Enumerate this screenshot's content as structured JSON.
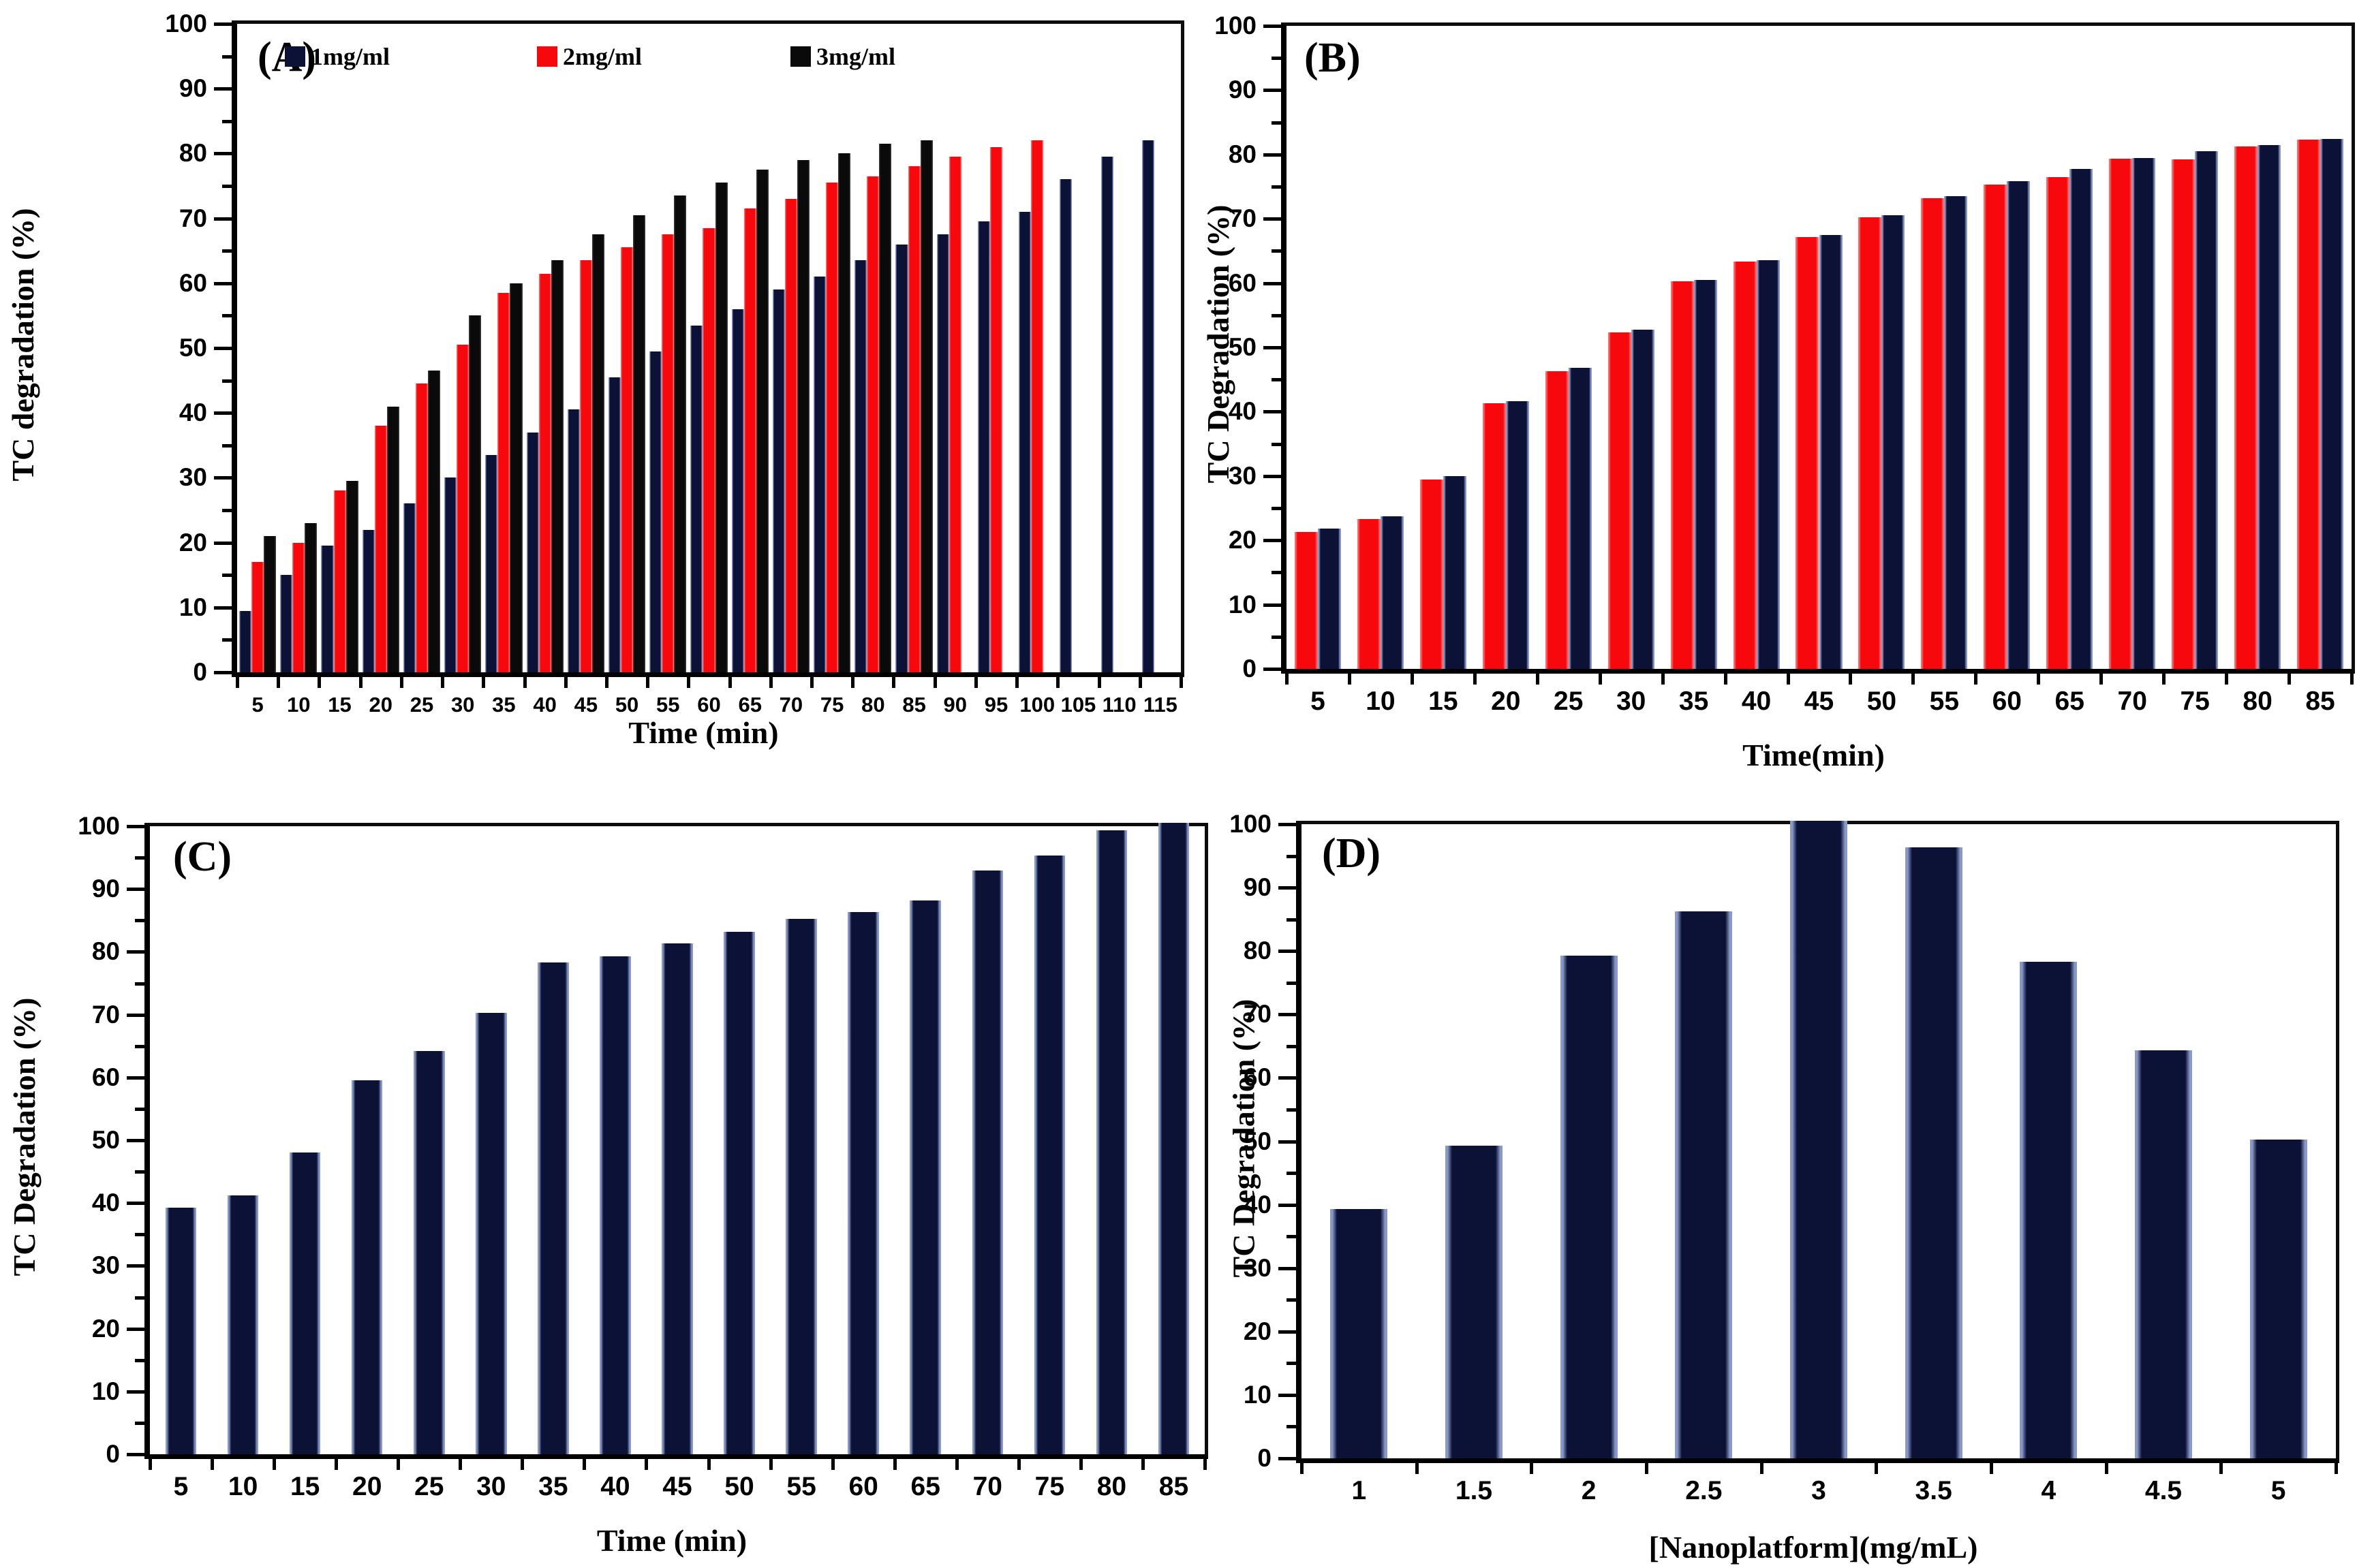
{
  "figure": {
    "background": "#ffffff",
    "text_color": "#000000"
  },
  "colors": {
    "navy": "#0b1236",
    "navy_edge": "#8a9ac8",
    "red": "#f6080c",
    "black": "#0a0a0a"
  },
  "chart_data": [
    {
      "panel_label": "(A)",
      "type": "bar",
      "title": "",
      "xlabel": "Time (min)",
      "ylabel": "TC degradation  (%)",
      "ylim": [
        0,
        100
      ],
      "ytick_step": 10,
      "ytick_minor_step": 5,
      "grid": false,
      "legend_position": "top-inside",
      "categories": [
        5,
        10,
        15,
        20,
        25,
        30,
        35,
        40,
        45,
        50,
        55,
        60,
        65,
        70,
        75,
        80,
        85,
        90,
        95,
        100,
        105,
        110,
        115
      ],
      "series": [
        {
          "name": "1mg/ml",
          "color": "#0b1236",
          "edge": "#8a9ac8",
          "values": [
            9.5,
            15,
            19.5,
            22,
            26,
            30,
            33.5,
            37,
            40.5,
            45.5,
            49.5,
            53.5,
            56,
            59,
            61,
            63.5,
            66,
            67.5,
            69.5,
            71,
            76,
            79.5,
            82
          ]
        },
        {
          "name": "2mg/ml",
          "color": "#f6080c",
          "edge": "#ff6a6a",
          "values": [
            17,
            20,
            28,
            38,
            44.5,
            50.5,
            58.5,
            61.5,
            63.5,
            65.5,
            67.5,
            68.5,
            71.5,
            73,
            75.5,
            76.5,
            78,
            79.5,
            81,
            82,
            null,
            null,
            null
          ]
        },
        {
          "name": "3mg/ml",
          "color": "#0a0a0a",
          "edge": "#3a3a3a",
          "values": [
            21,
            23,
            29.5,
            41,
            46.5,
            55,
            60,
            63.5,
            67.5,
            70.5,
            73.5,
            75.5,
            77.5,
            79,
            80,
            81.5,
            82,
            null,
            null,
            null,
            null,
            null,
            null
          ]
        }
      ]
    },
    {
      "panel_label": "(B)",
      "type": "bar",
      "title": "",
      "xlabel": "Time(min)",
      "ylabel": "TC Degradation (%)",
      "ylim": [
        0,
        100
      ],
      "ytick_step": 10,
      "ytick_minor_step": 5,
      "grid": false,
      "legend_position": "none",
      "categories": [
        5,
        10,
        15,
        20,
        25,
        30,
        35,
        40,
        45,
        50,
        55,
        60,
        65,
        70,
        75,
        80,
        85
      ],
      "series": [
        {
          "name": "",
          "color": "#f6080c",
          "edge": "#ff6a6a",
          "values": [
            21.3,
            23.3,
            29.5,
            41.3,
            46.3,
            52.3,
            60.3,
            63.3,
            67.2,
            70.2,
            73.2,
            75.3,
            76.5,
            79.3,
            79.2,
            81.2,
            82.3
          ]
        },
        {
          "name": "",
          "color": "#0b1236",
          "edge": "#8a9ac8",
          "values": [
            21.8,
            23.7,
            30,
            41.6,
            46.8,
            52.8,
            60.5,
            63.6,
            67.5,
            70.6,
            73.5,
            75.8,
            77.8,
            79.5,
            80.5,
            81.5,
            82.4
          ]
        }
      ]
    },
    {
      "panel_label": "(C)",
      "type": "bar",
      "title": "",
      "xlabel": "Time (min)",
      "ylabel": "TC Degradation  (%)",
      "ylim": [
        0,
        100
      ],
      "ytick_step": 10,
      "ytick_minor_step": 5,
      "grid": false,
      "legend_position": "none",
      "categories": [
        5,
        10,
        15,
        20,
        25,
        30,
        35,
        40,
        45,
        50,
        55,
        60,
        65,
        70,
        75,
        80,
        85
      ],
      "series": [
        {
          "name": "",
          "color": "#0b1236",
          "edge": "#8a9ac8",
          "values": [
            39.3,
            41.2,
            48,
            59.5,
            64.2,
            70.3,
            78.3,
            79.3,
            81.3,
            83.2,
            85.2,
            86.3,
            88.2,
            93,
            95.3,
            99.3,
            100.5
          ]
        }
      ]
    },
    {
      "panel_label": "(D)",
      "type": "bar",
      "title": "",
      "xlabel": "[Nanoplatform](mg/mL)",
      "ylabel": "TC Degradation  (%)",
      "ylim": [
        0,
        100
      ],
      "ytick_step": 10,
      "ytick_minor_step": 5,
      "grid": false,
      "legend_position": "none",
      "categories": [
        1,
        1.5,
        2,
        2.5,
        3,
        3.5,
        4,
        4.5,
        5
      ],
      "series": [
        {
          "name": "",
          "color": "#0b1236",
          "edge": "#8a9ac8",
          "values": [
            39.3,
            49.3,
            79.3,
            86.3,
            100.5,
            96.3,
            78.3,
            64.3,
            50.3
          ]
        }
      ]
    }
  ]
}
